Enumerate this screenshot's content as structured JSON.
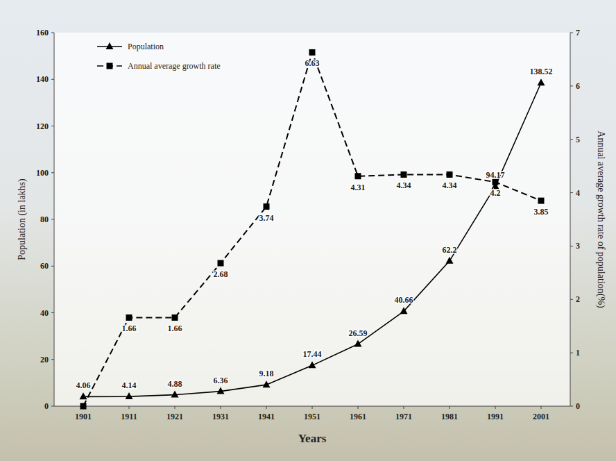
{
  "chart_data": {
    "type": "line",
    "x_label": "Years",
    "y_label": "Population (in lakhs)",
    "y2_label": "Annual average growth rate of population(%)",
    "categories": [
      "1901",
      "1911",
      "1921",
      "1931",
      "1941",
      "1951",
      "1961",
      "1971",
      "1981",
      "1991",
      "2001"
    ],
    "series": [
      {
        "name": "Population",
        "color": "#000000",
        "marker": "triangle",
        "line_style": "solid",
        "values": [
          4.06,
          4.14,
          4.88,
          6.36,
          9.18,
          17.44,
          26.59,
          40.66,
          62.2,
          94.17,
          138.52
        ]
      },
      {
        "name": "Annual average growth rate",
        "color": "#000000",
        "marker": "square",
        "line_style": "dashed",
        "axis": "y2",
        "values": [
          0,
          1.66,
          1.66,
          2.68,
          3.74,
          6.63,
          4.31,
          4.34,
          4.34,
          4.2,
          3.85
        ],
        "value_labels": [
          null,
          "1.66",
          "1.66",
          "2.68",
          "3.74",
          "6.63",
          "4.31",
          "4.34",
          "4.34",
          "4.2",
          "3.85"
        ]
      }
    ],
    "ylim": [
      0,
      160
    ],
    "yticks": [
      0,
      20,
      40,
      60,
      80,
      100,
      120,
      140,
      160
    ],
    "y2lim": [
      0,
      7
    ],
    "y2ticks": [
      0,
      1,
      2,
      3,
      4,
      5,
      6,
      7
    ],
    "data_labels": true,
    "legend": "upper left"
  }
}
